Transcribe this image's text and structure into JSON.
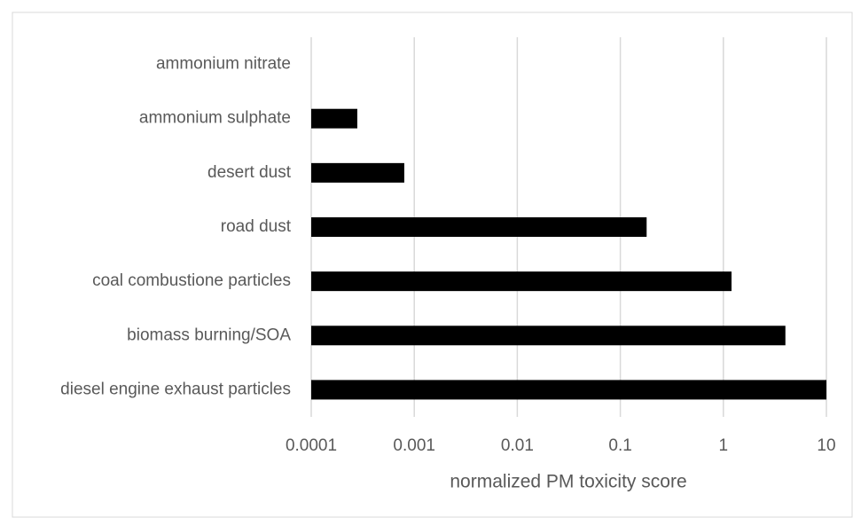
{
  "chart_data": {
    "type": "bar",
    "orientation": "horizontal",
    "categories": [
      "ammonium nitrate",
      "ammonium sulphate",
      "desert dust",
      "road dust",
      "coal combustione particles",
      "biomass burning/SOA",
      "diesel engine exhaust particles"
    ],
    "values": [
      null,
      0.00028,
      0.0008,
      0.18,
      1.2,
      4.0,
      10
    ],
    "color": "#000000",
    "xlim": [
      0.0001,
      10
    ],
    "xticks": [
      0.0001,
      0.001,
      0.01,
      0.1,
      1,
      10
    ],
    "xscale": "log",
    "grid": true,
    "xlabel": "normalized PM toxicity score"
  }
}
